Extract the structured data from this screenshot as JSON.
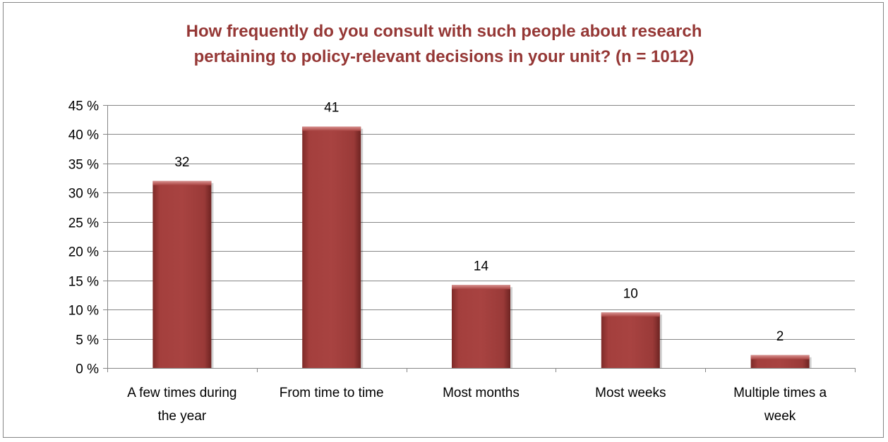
{
  "chart_data": {
    "type": "bar",
    "title_lines": [
      "How frequently do you consult with such people about research",
      "pertaining to policy-relevant decisions in your unit? (n = 1012)"
    ],
    "categories": [
      [
        "A few times during",
        "the year"
      ],
      [
        "From time to time"
      ],
      [
        "Most months"
      ],
      [
        "Most weeks"
      ],
      [
        "Multiple times a",
        "week"
      ]
    ],
    "values": [
      32,
      41.3,
      14.2,
      9.5,
      2.2
    ],
    "data_labels": [
      "32",
      "41",
      "14",
      "10",
      "2"
    ],
    "y_ticks": [
      "0 %",
      "5 %",
      "10 %",
      "15 %",
      "20 %",
      "25 %",
      "30 %",
      "35 %",
      "40 %",
      "45 %"
    ],
    "ylim": [
      0,
      45
    ],
    "y_tick_step": 5,
    "gridlines": true,
    "legend": "none",
    "bar_color": "#a03e3c",
    "title_color": "#953735"
  }
}
